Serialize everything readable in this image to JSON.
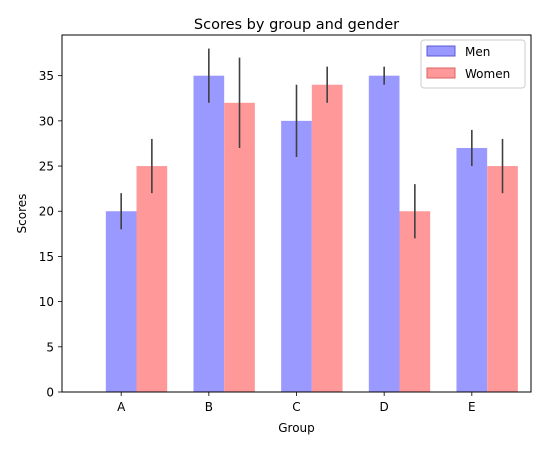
{
  "chart_data": {
    "type": "bar",
    "title": "Scores by group and gender",
    "xlabel": "Group",
    "ylabel": "Scores",
    "categories": [
      "A",
      "B",
      "C",
      "D",
      "E"
    ],
    "ylim": [
      0,
      39.5
    ],
    "yticks": [
      0,
      5,
      10,
      15,
      20,
      25,
      30,
      35
    ],
    "grid": false,
    "legend_position": "top-right",
    "series": [
      {
        "name": "Men",
        "values": [
          20,
          35,
          30,
          35,
          27
        ],
        "errors": [
          2,
          3,
          4,
          1,
          2
        ],
        "color": "#9999ff",
        "edge_color": "#5959d9"
      },
      {
        "name": "Women",
        "values": [
          25,
          32,
          34,
          20,
          25
        ],
        "errors": [
          3,
          5,
          2,
          3,
          3
        ],
        "color": "#ff9999",
        "edge_color": "#d96262"
      }
    ],
    "error_color": "#404040"
  }
}
